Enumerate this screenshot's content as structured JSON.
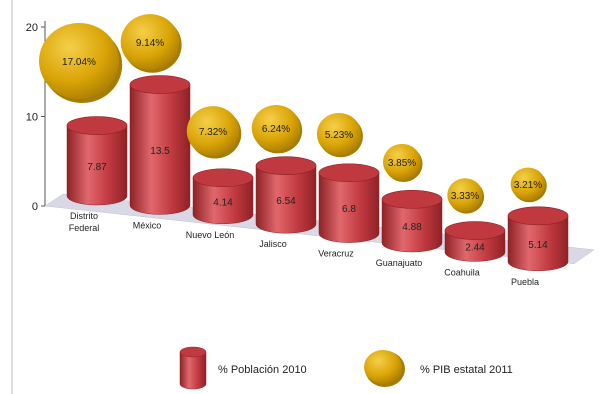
{
  "chart_data": {
    "type": "bar",
    "categories": [
      "Distrito\nFederal",
      "México",
      "Nuevo León",
      "Jalisco",
      "Veracruz",
      "Guanajuato",
      "Coahuila",
      "Puebla"
    ],
    "series": [
      {
        "name": "% Población 2010",
        "values": [
          7.87,
          13.5,
          4.14,
          6.54,
          6.8,
          4.88,
          2.44,
          5.14
        ],
        "labels": [
          "7.87",
          "13.5",
          "4.14",
          "6.54",
          "6.8",
          "4.88",
          "2.44",
          "5.14"
        ]
      },
      {
        "name": "% PIB estatal  2011",
        "values": [
          17.04,
          9.14,
          7.32,
          6.24,
          5.23,
          3.85,
          3.33,
          3.21
        ],
        "labels": [
          "17.04%",
          "9.14%",
          "7.32%",
          "6.24%",
          "5.23%",
          "3.85%",
          "3.33%",
          "3.21%"
        ]
      }
    ],
    "y_ticks": [
      "0",
      "10",
      "20"
    ],
    "ylim": [
      0,
      20
    ],
    "title": "",
    "xlabel": "",
    "ylabel": "",
    "legend_position": "bottom",
    "colors": {
      "bar": "#c0393f",
      "bar_dark": "#8e2226",
      "bar_light": "#e0686d",
      "bubble": "#d9a406",
      "bubble_dark": "#a77b00",
      "bubble_light": "#f5cf4a",
      "floor": "#d8d8e6",
      "axis": "#555555"
    }
  }
}
